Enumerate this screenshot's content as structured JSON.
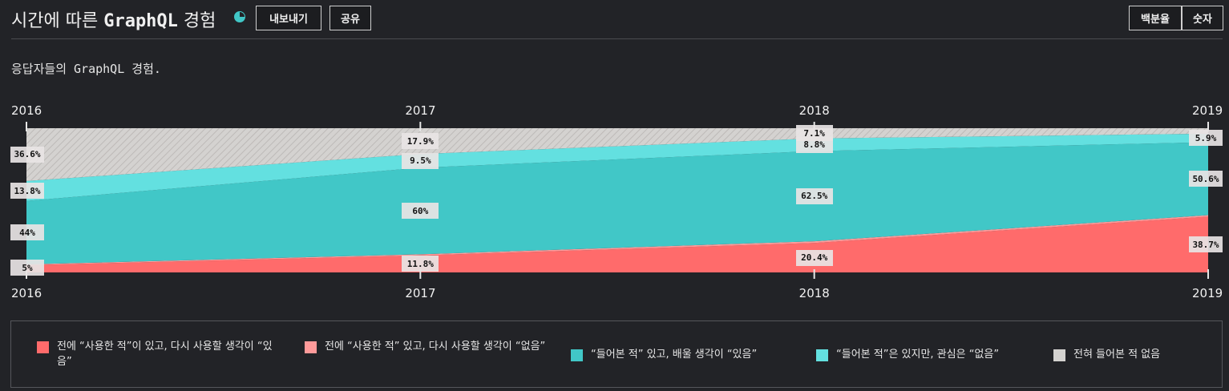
{
  "header": {
    "title_prefix": "시간에 따른",
    "title_highlight": "GraphQL",
    "title_suffix": "경험",
    "export_label": "내보내기",
    "share_label": "공유",
    "percent_label": "백분율",
    "count_label": "숫자"
  },
  "subtitle": "응답자들의 GraphQL 경험.",
  "colors": {
    "would_use": "#ff6b6b",
    "would_not_use": "#ff9a9a",
    "interested": "#41c7c7",
    "not_interested": "#63e0e0",
    "never_heard": "#d4d2d0",
    "background": "#222327"
  },
  "chart_data": {
    "type": "area",
    "stacked": true,
    "normalized": true,
    "x": [
      "2016",
      "2017",
      "2018",
      "2019"
    ],
    "series": [
      {
        "name": "전에 “사용한 적”이 있고, 다시 사용할 생각이 “있음”",
        "values": [
          5,
          11.8,
          20.4,
          38.7
        ]
      },
      {
        "name": "전에 “사용한 적” 있고, 다시 사용할 생각이 “없음”",
        "values": [
          0.6,
          0.8,
          1.2,
          1.0
        ]
      },
      {
        "name": "“들어본 적” 있고, 배울 생각이 “있음”",
        "values": [
          44,
          60,
          62.5,
          50.6
        ]
      },
      {
        "name": "“들어본 적”은 있지만, 관심은 “없음”",
        "values": [
          13.8,
          9.5,
          8.8,
          5.9
        ]
      },
      {
        "name": "전혀 들어본 적 없음",
        "values": [
          36.6,
          17.9,
          7.1,
          3.8
        ]
      }
    ],
    "labels": {
      "would_use": [
        "5%",
        "11.8%",
        "20.4%",
        "38.7%"
      ],
      "interested": [
        "44%",
        "60%",
        "62.5%",
        "50.6%"
      ],
      "not_interested": [
        "13.8%",
        "9.5%",
        "8.8%",
        "5.9%"
      ],
      "never_heard": [
        "36.6%",
        "17.9%",
        "7.1%",
        ""
      ]
    }
  },
  "legend": [
    {
      "label": "전에 “사용한 적”이 있고, 다시 사용할 생각이 “있음”",
      "color": "#ff6b6b"
    },
    {
      "label": "전에 “사용한 적” 있고, 다시 사용할 생각이 “없음”",
      "color": "#ff9a9a"
    },
    {
      "label": "“들어본 적” 있고, 배울 생각이 “있음”",
      "color": "#41c7c7"
    },
    {
      "label": "“들어본 적”은 있지만, 관심은 “없음”",
      "color": "#63e0e0"
    },
    {
      "label": "전혀 들어본 적 없음",
      "color": "#d4d2d0"
    }
  ]
}
